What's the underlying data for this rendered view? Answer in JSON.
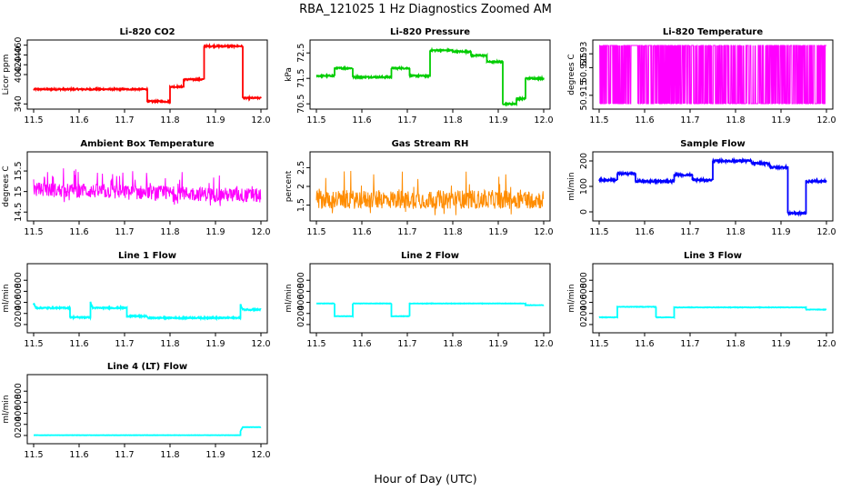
{
  "figure": {
    "title": "RBA_121025  1 Hz Diagnostics Zoomed AM",
    "xlabel": "Hour of Day (UTC)"
  },
  "chart_data": [
    {
      "type": "line",
      "title": "Li-820 CO2",
      "ylabel": "Licor ppm",
      "color": "#ff0000",
      "xlim": [
        11.5,
        12.0
      ],
      "ylim": [
        335,
        465
      ],
      "x_ticks": [
        "11.5",
        "11.6",
        "11.7",
        "11.8",
        "11.9",
        "12.0"
      ],
      "y_ticks": [
        340,
        400,
        420,
        440,
        460
      ],
      "noise": 1.5,
      "series": [
        {
          "x": [
            11.5,
            11.75,
            11.75,
            11.8,
            11.8,
            11.83,
            11.83,
            11.875,
            11.875,
            11.96,
            11.96,
            12.0
          ],
          "y": [
            370,
            370,
            345,
            345,
            375,
            375,
            390,
            390,
            458,
            458,
            352,
            352
          ]
        }
      ]
    },
    {
      "type": "line",
      "title": "Li-820 Pressure",
      "ylabel": "kPa",
      "color": "#00cc00",
      "xlim": [
        11.5,
        12.0
      ],
      "ylim": [
        70.4,
        72.9
      ],
      "x_ticks": [
        "11.5",
        "11.6",
        "11.7",
        "11.8",
        "11.9",
        "12.0"
      ],
      "y_ticks": [
        70.5,
        71.5,
        72.5
      ],
      "noise": 0.03,
      "series": [
        {
          "x": [
            11.5,
            11.54,
            11.54,
            11.58,
            11.58,
            11.665,
            11.665,
            11.705,
            11.705,
            11.75,
            11.75,
            11.8,
            11.8,
            11.84,
            11.84,
            11.875,
            11.875,
            11.91,
            11.91,
            11.94,
            11.94,
            11.96,
            11.96,
            12.0
          ],
          "y": [
            71.6,
            71.6,
            71.9,
            71.9,
            71.55,
            71.55,
            71.9,
            71.9,
            71.6,
            71.6,
            72.6,
            72.6,
            72.55,
            72.55,
            72.4,
            72.4,
            72.15,
            72.15,
            70.5,
            70.5,
            70.7,
            70.7,
            71.5,
            71.5
          ]
        }
      ]
    },
    {
      "type": "line",
      "title": "Li-820 Temperature",
      "ylabel": "degrees C",
      "color": "#ff00ff",
      "xlim": [
        11.5,
        12.0
      ],
      "ylim": [
        50.911,
        50.934
      ],
      "x_ticks": [
        "11.5",
        "11.6",
        "11.7",
        "11.8",
        "11.9",
        "12.0"
      ],
      "y_ticks": [
        50.915,
        50.925,
        50.93
      ],
      "pattern": "binary",
      "low": 50.912,
      "high": 50.933
    },
    {
      "type": "line",
      "title": "Ambient Box Temperature",
      "ylabel": "degrees C",
      "color": "#ff00ff",
      "xlim": [
        11.5,
        12.0
      ],
      "ylim": [
        14.35,
        15.9
      ],
      "x_ticks": [
        "11.5",
        "11.6",
        "11.7",
        "11.8",
        "11.9",
        "12.0"
      ],
      "y_ticks": [
        14.5,
        15.0,
        15.5
      ],
      "pattern": "noise",
      "mean": 15.05,
      "spread": 0.35,
      "trend_end": 14.9
    },
    {
      "type": "line",
      "title": "Gas Stream RH",
      "ylabel": "percent",
      "color": "#ff8c00",
      "xlim": [
        11.5,
        12.0
      ],
      "ylim": [
        1.15,
        2.85
      ],
      "x_ticks": [
        "11.5",
        "11.6",
        "11.7",
        "11.8",
        "11.9",
        "12.0"
      ],
      "y_ticks": [
        1.5,
        2.0,
        2.5
      ],
      "pattern": "noise",
      "mean": 1.65,
      "spread": 0.5,
      "trend_end": 1.65
    },
    {
      "type": "line",
      "title": "Sample Flow",
      "ylabel": "ml/min",
      "color": "#0000ff",
      "xlim": [
        11.5,
        12.0
      ],
      "ylim": [
        -25,
        225
      ],
      "x_ticks": [
        "11.5",
        "11.6",
        "11.7",
        "11.8",
        "11.9",
        "12.0"
      ],
      "y_ticks": [
        0,
        100,
        200
      ],
      "noise": 4,
      "series": [
        {
          "x": [
            11.5,
            11.54,
            11.54,
            11.58,
            11.58,
            11.665,
            11.665,
            11.705,
            11.705,
            11.75,
            11.75,
            11.835,
            11.835,
            11.875,
            11.875,
            11.915,
            11.915,
            11.955,
            11.955,
            12.0
          ],
          "y": [
            125,
            125,
            150,
            150,
            120,
            120,
            145,
            145,
            125,
            125,
            200,
            200,
            190,
            190,
            175,
            175,
            -5,
            -5,
            120,
            120
          ]
        }
      ]
    },
    {
      "type": "line",
      "title": "Line 1 Flow",
      "ylabel": "ml/min",
      "color": "#00ffff",
      "xlim": [
        11.5,
        12.0
      ],
      "ylim": [
        -100,
        1050
      ],
      "x_ticks": [
        "11.5",
        "11.6",
        "11.7",
        "11.8",
        "11.9",
        "12.0"
      ],
      "y_ticks": [
        0,
        200,
        400,
        600,
        800
      ],
      "noise": 12,
      "series": [
        {
          "x": [
            11.5,
            11.5,
            11.505,
            11.58,
            11.58,
            11.625,
            11.625,
            11.63,
            11.705,
            11.705,
            11.75,
            11.75,
            11.955,
            11.955,
            11.96,
            12.0
          ],
          "y": [
            380,
            380,
            300,
            300,
            130,
            130,
            400,
            300,
            300,
            150,
            150,
            120,
            120,
            360,
            270,
            270
          ]
        }
      ]
    },
    {
      "type": "line",
      "title": "Line 2 Flow",
      "ylabel": "ml/min",
      "color": "#00ffff",
      "xlim": [
        11.5,
        12.0
      ],
      "ylim": [
        -100,
        1050
      ],
      "x_ticks": [
        "11.5",
        "11.6",
        "11.7",
        "11.8",
        "11.9",
        "12.0"
      ],
      "y_ticks": [
        0,
        200,
        400,
        600,
        800
      ],
      "noise": 3,
      "series": [
        {
          "x": [
            11.5,
            11.54,
            11.54,
            11.58,
            11.58,
            11.665,
            11.665,
            11.705,
            11.705,
            11.96,
            11.96,
            12.0
          ],
          "y": [
            380,
            380,
            150,
            150,
            380,
            380,
            150,
            150,
            380,
            380,
            350,
            350
          ]
        }
      ]
    },
    {
      "type": "line",
      "title": "Line 3 Flow",
      "ylabel": "ml/min",
      "color": "#00ffff",
      "xlim": [
        11.5,
        12.0
      ],
      "ylim": [
        -100,
        1050
      ],
      "x_ticks": [
        "11.5",
        "11.6",
        "11.7",
        "11.8",
        "11.9",
        "12.0"
      ],
      "y_ticks": [
        0,
        200,
        400,
        600,
        800
      ],
      "noise": 4,
      "series": [
        {
          "x": [
            11.5,
            11.54,
            11.54,
            11.625,
            11.625,
            11.665,
            11.665,
            11.955,
            11.955,
            12.0
          ],
          "y": [
            130,
            130,
            320,
            320,
            130,
            130,
            310,
            310,
            270,
            270
          ]
        }
      ]
    },
    {
      "type": "line",
      "title": "Line 4 (LT) Flow",
      "ylabel": "ml/min",
      "color": "#00ffff",
      "xlim": [
        11.5,
        12.0
      ],
      "ylim": [
        -100,
        1050
      ],
      "x_ticks": [
        "11.5",
        "11.6",
        "11.7",
        "11.8",
        "11.9",
        "12.0"
      ],
      "y_ticks": [
        0,
        200,
        400,
        600,
        800
      ],
      "noise": 2,
      "series": [
        {
          "x": [
            11.5,
            11.955,
            11.955,
            11.96,
            12.0
          ],
          "y": [
            5,
            5,
            80,
            150,
            150
          ]
        }
      ]
    }
  ]
}
